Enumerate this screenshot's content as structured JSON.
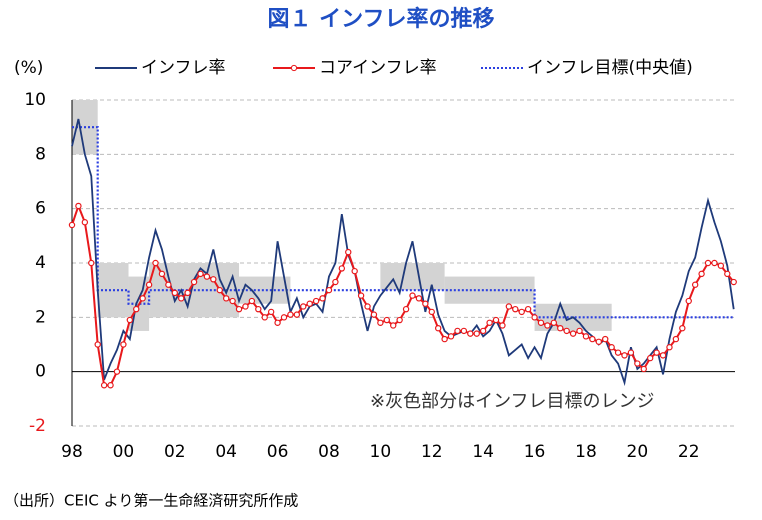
{
  "chart_data": {
    "type": "line",
    "title": "図１ インフレ率の推移",
    "y_label": "(%)",
    "annotation": "※灰色部分はインフレ目標のレンジ",
    "source": "（出所）CEIC より第一生命経済研究所作成",
    "xlim": [
      1998,
      2023.8
    ],
    "ylim": [
      -2,
      10
    ],
    "yticks": [
      -2,
      0,
      2,
      4,
      6,
      8,
      10
    ],
    "xticks": [
      {
        "value": 1998,
        "label": "98"
      },
      {
        "value": 2000,
        "label": "00"
      },
      {
        "value": 2002,
        "label": "02"
      },
      {
        "value": 2004,
        "label": "04"
      },
      {
        "value": 2006,
        "label": "06"
      },
      {
        "value": 2008,
        "label": "08"
      },
      {
        "value": 2010,
        "label": "10"
      },
      {
        "value": 2012,
        "label": "12"
      },
      {
        "value": 2014,
        "label": "14"
      },
      {
        "value": 2016,
        "label": "16"
      },
      {
        "value": 2018,
        "label": "18"
      },
      {
        "value": 2020,
        "label": "20"
      },
      {
        "value": 2022,
        "label": "22"
      }
    ],
    "grid": true,
    "x": [
      1998,
      1998.25,
      1998.5,
      1998.75,
      1999,
      1999.25,
      1999.5,
      1999.75,
      2000,
      2000.25,
      2000.5,
      2000.75,
      2001,
      2001.25,
      2001.5,
      2001.75,
      2002,
      2002.25,
      2002.5,
      2002.75,
      2003,
      2003.25,
      2003.5,
      2003.75,
      2004,
      2004.25,
      2004.5,
      2004.75,
      2005,
      2005.25,
      2005.5,
      2005.75,
      2006,
      2006.25,
      2006.5,
      2006.75,
      2007,
      2007.25,
      2007.5,
      2007.75,
      2008,
      2008.25,
      2008.5,
      2008.75,
      2009,
      2009.25,
      2009.5,
      2009.75,
      2010,
      2010.25,
      2010.5,
      2010.75,
      2011,
      2011.25,
      2011.5,
      2011.75,
      2012,
      2012.25,
      2012.5,
      2012.75,
      2013,
      2013.25,
      2013.5,
      2013.75,
      2014,
      2014.25,
      2014.5,
      2014.75,
      2015,
      2015.25,
      2015.5,
      2015.75,
      2016,
      2016.25,
      2016.5,
      2016.75,
      2017,
      2017.25,
      2017.5,
      2017.75,
      2018,
      2018.25,
      2018.5,
      2018.75,
      2019,
      2019.25,
      2019.5,
      2019.75,
      2020,
      2020.25,
      2020.5,
      2020.75,
      2021,
      2021.25,
      2021.5,
      2021.75,
      2022,
      2022.25,
      2022.5,
      2022.75,
      2023,
      2023.25,
      2023.5,
      2023.75
    ],
    "series": [
      {
        "name": "インフレ率",
        "color": "#1f3a7a",
        "marker": false,
        "values": [
          8.3,
          9.3,
          8.0,
          7.2,
          3.0,
          -0.3,
          0.3,
          0.8,
          1.5,
          1.2,
          2.5,
          3.0,
          4.2,
          5.2,
          4.5,
          3.5,
          2.6,
          3.0,
          2.4,
          3.4,
          3.8,
          3.6,
          4.5,
          3.4,
          2.9,
          3.5,
          2.6,
          3.2,
          3.0,
          2.7,
          2.3,
          2.6,
          4.8,
          3.5,
          2.2,
          2.7,
          2.0,
          2.4,
          2.5,
          2.2,
          3.5,
          4.0,
          5.8,
          4.3,
          3.7,
          2.5,
          1.5,
          2.4,
          2.8,
          3.1,
          3.4,
          2.9,
          4.0,
          4.8,
          3.5,
          2.2,
          3.2,
          2.1,
          1.5,
          1.3,
          1.4,
          1.5,
          1.4,
          1.7,
          1.3,
          1.5,
          1.9,
          1.4,
          0.6,
          0.8,
          1.0,
          0.5,
          0.9,
          0.5,
          1.4,
          1.8,
          2.5,
          1.9,
          2.0,
          1.8,
          1.5,
          1.3,
          1.0,
          1.2,
          0.6,
          0.3,
          -0.4,
          0.9,
          0.1,
          0.3,
          0.6,
          0.9,
          -0.1,
          1.2,
          2.2,
          2.8,
          3.7,
          4.2,
          5.3,
          6.3,
          5.5,
          4.8,
          3.9,
          2.3
        ]
      },
      {
        "name": "コアインフレ率",
        "color": "#e8191c",
        "marker": true,
        "values": [
          5.4,
          6.1,
          5.5,
          4.0,
          1.0,
          -0.5,
          -0.5,
          0.0,
          1.0,
          1.9,
          2.3,
          2.7,
          3.2,
          4.0,
          3.6,
          3.2,
          2.9,
          2.7,
          2.9,
          3.3,
          3.6,
          3.5,
          3.4,
          3.0,
          2.7,
          2.6,
          2.3,
          2.4,
          2.6,
          2.3,
          2.0,
          2.2,
          1.8,
          2.0,
          2.1,
          2.1,
          2.4,
          2.5,
          2.6,
          2.7,
          3.0,
          3.3,
          3.8,
          4.4,
          3.7,
          2.8,
          2.4,
          2.1,
          1.8,
          1.9,
          1.7,
          1.9,
          2.3,
          2.8,
          2.7,
          2.5,
          2.2,
          1.6,
          1.2,
          1.3,
          1.5,
          1.5,
          1.4,
          1.4,
          1.5,
          1.8,
          1.9,
          1.7,
          2.4,
          2.3,
          2.2,
          2.3,
          2.0,
          1.8,
          1.7,
          1.8,
          1.6,
          1.5,
          1.4,
          1.5,
          1.3,
          1.2,
          1.1,
          1.2,
          0.9,
          0.7,
          0.6,
          0.7,
          0.3,
          0.1,
          0.5,
          0.7,
          0.6,
          0.9,
          1.2,
          1.6,
          2.6,
          3.2,
          3.6,
          4.0,
          4.0,
          3.9,
          3.6,
          3.3
        ]
      }
    ],
    "target": {
      "name": "インフレ目標(中央値)",
      "color": "#2b3fe0",
      "x": [
        1998,
        1999,
        1999,
        2000.2,
        2000.2,
        2001,
        2001,
        2016,
        2016,
        2023.75
      ],
      "values": [
        9,
        9,
        3,
        3,
        2.5,
        2.5,
        3,
        3,
        2,
        2
      ]
    },
    "target_range": [
      {
        "x": [
          1998,
          1999
        ],
        "low": 8,
        "high": 10
      },
      {
        "x": [
          1999,
          2000.2
        ],
        "low": 2,
        "high": 4
      },
      {
        "x": [
          2000.2,
          2001
        ],
        "low": 1.5,
        "high": 3.5
      },
      {
        "x": [
          2001,
          2004.5
        ],
        "low": 2,
        "high": 4
      },
      {
        "x": [
          2004.5,
          2006.5
        ],
        "low": 2.5,
        "high": 3.5
      },
      {
        "x": [
          2010,
          2012.5
        ],
        "low": 3,
        "high": 4
      },
      {
        "x": [
          2012.5,
          2016
        ],
        "low": 2.5,
        "high": 3.5
      },
      {
        "x": [
          2016,
          2019
        ],
        "low": 1.5,
        "high": 2.5
      }
    ],
    "range_color": "#d3d3d3"
  }
}
